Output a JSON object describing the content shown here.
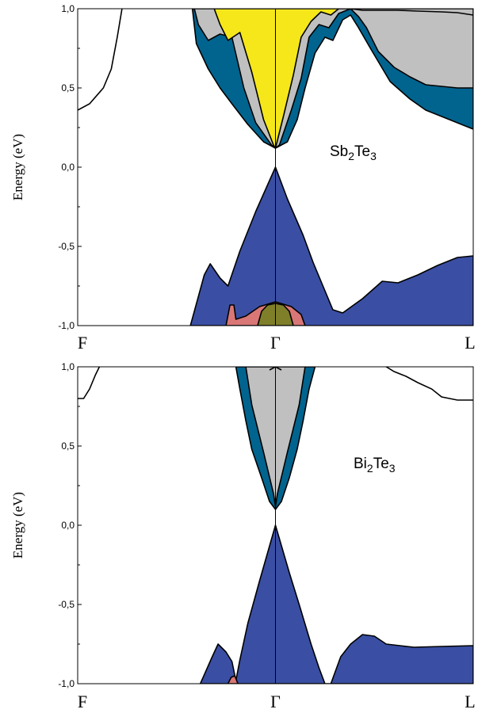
{
  "colors": {
    "outline": "#000000",
    "blue_navy": "#3a4fa3",
    "blue_teal": "#00648f",
    "gray": "#c0c0c0",
    "yellow": "#f5e71a",
    "pink": "#d97777",
    "olive": "#7f7f2a"
  },
  "chart_data": [
    {
      "type": "area",
      "material": {
        "base1": "Sb",
        "sub1": "2",
        "base2": "Te",
        "sub2": "3"
      },
      "ylabel": "Energy (eV)",
      "ylim": [
        -1.0,
        1.0
      ],
      "yticks": [
        "-1,0",
        "-0,5",
        "0,0",
        "0,5",
        "1,0"
      ],
      "xlim": [
        0,
        1
      ],
      "xticks": [
        {
          "x": 0.0,
          "label": "F"
        },
        {
          "x": 0.5,
          "label": "Γ"
        },
        {
          "x": 1.0,
          "label": "L"
        }
      ],
      "regions": [
        {
          "color": "blue_navy",
          "points": [
            [
              0.285,
              -1.0
            ],
            [
              0.32,
              -0.68
            ],
            [
              0.335,
              -0.61
            ],
            [
              0.36,
              -0.7
            ],
            [
              0.38,
              -0.75
            ],
            [
              0.41,
              -0.53
            ],
            [
              0.45,
              -0.28
            ],
            [
              0.5,
              0.0
            ],
            [
              0.53,
              -0.2
            ],
            [
              0.57,
              -0.43
            ],
            [
              0.595,
              -0.6
            ],
            [
              0.62,
              -0.75
            ],
            [
              0.645,
              -0.9
            ],
            [
              0.67,
              -0.92
            ],
            [
              0.72,
              -0.83
            ],
            [
              0.77,
              -0.72
            ],
            [
              0.81,
              -0.73
            ],
            [
              0.86,
              -0.68
            ],
            [
              0.91,
              -0.62
            ],
            [
              0.96,
              -0.57
            ],
            [
              1.0,
              -0.56
            ],
            [
              1.0,
              -1.0
            ]
          ]
        },
        {
          "color": "pink",
          "points": [
            [
              0.375,
              -1.0
            ],
            [
              0.385,
              -0.87
            ],
            [
              0.395,
              -0.87
            ],
            [
              0.4,
              -0.96
            ],
            [
              0.425,
              -0.94
            ],
            [
              0.46,
              -0.88
            ],
            [
              0.5,
              -0.85
            ],
            [
              0.54,
              -0.88
            ],
            [
              0.565,
              -0.93
            ],
            [
              0.575,
              -1.0
            ]
          ]
        },
        {
          "color": "olive",
          "points": [
            [
              0.455,
              -1.0
            ],
            [
              0.465,
              -0.91
            ],
            [
              0.48,
              -0.87
            ],
            [
              0.5,
              -0.86
            ],
            [
              0.52,
              -0.87
            ],
            [
              0.535,
              -0.91
            ],
            [
              0.545,
              -1.0
            ]
          ]
        },
        {
          "color": "blue_teal",
          "points": [
            [
              0.29,
              1.0
            ],
            [
              0.3,
              0.78
            ],
            [
              0.33,
              0.62
            ],
            [
              0.36,
              0.5
            ],
            [
              0.39,
              0.4
            ],
            [
              0.43,
              0.27
            ],
            [
              0.47,
              0.16
            ],
            [
              0.5,
              0.12
            ],
            [
              0.53,
              0.16
            ],
            [
              0.555,
              0.3
            ],
            [
              0.575,
              0.5
            ],
            [
              0.6,
              0.72
            ],
            [
              0.625,
              0.82
            ],
            [
              0.645,
              0.8
            ],
            [
              0.67,
              0.93
            ],
            [
              0.69,
              0.96
            ],
            [
              0.71,
              0.88
            ],
            [
              0.74,
              0.75
            ],
            [
              0.79,
              0.54
            ],
            [
              0.84,
              0.43
            ],
            [
              0.88,
              0.36
            ],
            [
              0.92,
              0.32
            ],
            [
              0.96,
              0.28
            ],
            [
              1.0,
              0.24
            ],
            [
              1.0,
              1.0
            ]
          ]
        },
        {
          "color": "gray",
          "points": [
            [
              0.295,
              1.0
            ],
            [
              0.305,
              0.9
            ],
            [
              0.33,
              0.8
            ],
            [
              0.36,
              0.84
            ],
            [
              0.39,
              0.82
            ],
            [
              0.42,
              0.5
            ],
            [
              0.45,
              0.28
            ],
            [
              0.49,
              0.14
            ],
            [
              0.5,
              0.12
            ],
            [
              0.51,
              0.14
            ],
            [
              0.54,
              0.36
            ],
            [
              0.565,
              0.56
            ],
            [
              0.585,
              0.82
            ],
            [
              0.61,
              0.9
            ],
            [
              0.635,
              0.88
            ],
            [
              0.66,
              0.97
            ],
            [
              0.69,
              1.0
            ],
            [
              0.71,
              0.95
            ],
            [
              0.73,
              0.88
            ],
            [
              0.76,
              0.73
            ],
            [
              0.8,
              0.63
            ],
            [
              0.84,
              0.57
            ],
            [
              0.88,
              0.52
            ],
            [
              0.92,
              0.51
            ],
            [
              0.96,
              0.5
            ],
            [
              1.0,
              0.5
            ],
            [
              1.0,
              1.0
            ]
          ]
        },
        {
          "color": "yellow",
          "points": [
            [
              0.345,
              1.0
            ],
            [
              0.36,
              0.9
            ],
            [
              0.38,
              0.8
            ],
            [
              0.41,
              0.85
            ],
            [
              0.44,
              0.6
            ],
            [
              0.47,
              0.3
            ],
            [
              0.495,
              0.14
            ],
            [
              0.5,
              0.12
            ],
            [
              0.52,
              0.32
            ],
            [
              0.545,
              0.58
            ],
            [
              0.565,
              0.82
            ],
            [
              0.59,
              0.92
            ],
            [
              0.615,
              0.98
            ],
            [
              0.64,
              0.96
            ],
            [
              0.66,
              1.0
            ]
          ]
        }
      ],
      "lines": [
        [
          [
            0.0,
            0.36
          ],
          [
            0.03,
            0.4
          ],
          [
            0.065,
            0.5
          ],
          [
            0.085,
            0.62
          ],
          [
            0.1,
            0.82
          ],
          [
            0.112,
            1.0
          ]
        ],
        [
          [
            0.69,
            1.0
          ],
          [
            0.72,
            0.99
          ],
          [
            0.76,
            0.99
          ],
          [
            0.81,
            0.99
          ],
          [
            0.86,
            0.985
          ],
          [
            0.92,
            0.98
          ],
          [
            0.96,
            0.975
          ],
          [
            1.0,
            0.96
          ]
        ]
      ],
      "gamma_line": true
    },
    {
      "type": "area",
      "material": {
        "base1": "Bi",
        "sub1": "2",
        "base2": "Te",
        "sub2": "3"
      },
      "ylabel": "Energy (eV)",
      "ylim": [
        -1.0,
        1.0
      ],
      "yticks": [
        "-1,0",
        "-0,5",
        "0,0",
        "0,5",
        "1,0"
      ],
      "xlim": [
        0,
        1
      ],
      "xticks": [
        {
          "x": 0.0,
          "label": "F"
        },
        {
          "x": 0.5,
          "label": "Γ"
        },
        {
          "x": 1.0,
          "label": "L"
        }
      ],
      "regions": [
        {
          "color": "blue_navy",
          "points": [
            [
              0.31,
              -1.0
            ],
            [
              0.34,
              -0.83
            ],
            [
              0.355,
              -0.75
            ],
            [
              0.375,
              -0.8
            ],
            [
              0.39,
              -0.86
            ],
            [
              0.4,
              -0.98
            ],
            [
              0.41,
              -0.85
            ],
            [
              0.43,
              -0.62
            ],
            [
              0.46,
              -0.35
            ],
            [
              0.5,
              0.0
            ],
            [
              0.535,
              -0.3
            ],
            [
              0.56,
              -0.5
            ],
            [
              0.59,
              -0.75
            ],
            [
              0.61,
              -0.9
            ],
            [
              0.625,
              -1.0
            ],
            [
              0.64,
              -1.0
            ],
            [
              0.665,
              -0.83
            ],
            [
              0.69,
              -0.75
            ],
            [
              0.72,
              -0.69
            ],
            [
              0.75,
              -0.7
            ],
            [
              0.78,
              -0.75
            ],
            [
              0.85,
              -0.77
            ],
            [
              0.92,
              -0.765
            ],
            [
              1.0,
              -0.76
            ],
            [
              1.0,
              -1.0
            ]
          ]
        },
        {
          "color": "pink",
          "points": [
            [
              0.38,
              -1.0
            ],
            [
              0.388,
              -0.96
            ],
            [
              0.397,
              -0.95
            ],
            [
              0.405,
              -1.0
            ]
          ]
        },
        {
          "color": "blue_teal",
          "points": [
            [
              0.4,
              1.0
            ],
            [
              0.41,
              0.86
            ],
            [
              0.425,
              0.66
            ],
            [
              0.44,
              0.48
            ],
            [
              0.465,
              0.3
            ],
            [
              0.485,
              0.15
            ],
            [
              0.5,
              0.1
            ],
            [
              0.515,
              0.15
            ],
            [
              0.535,
              0.3
            ],
            [
              0.555,
              0.48
            ],
            [
              0.57,
              0.66
            ],
            [
              0.585,
              0.86
            ],
            [
              0.6,
              1.0
            ]
          ]
        },
        {
          "color": "gray",
          "points": [
            [
              0.425,
              1.0
            ],
            [
              0.44,
              0.76
            ],
            [
              0.47,
              0.46
            ],
            [
              0.495,
              0.2
            ],
            [
              0.5,
              0.12
            ],
            [
              0.505,
              0.2
            ],
            [
              0.53,
              0.46
            ],
            [
              0.56,
              0.76
            ],
            [
              0.575,
              1.0
            ]
          ]
        }
      ],
      "lines": [
        [
          [
            0.0,
            0.8
          ],
          [
            0.015,
            0.8
          ],
          [
            0.03,
            0.86
          ],
          [
            0.045,
            0.95
          ],
          [
            0.055,
            1.0
          ]
        ],
        [
          [
            0.78,
            1.0
          ],
          [
            0.8,
            0.97
          ],
          [
            0.83,
            0.94
          ],
          [
            0.86,
            0.9
          ],
          [
            0.895,
            0.86
          ],
          [
            0.92,
            0.81
          ],
          [
            0.96,
            0.79
          ],
          [
            1.0,
            0.79
          ]
        ],
        [
          [
            0.485,
            0.98
          ],
          [
            0.5,
            1.0
          ],
          [
            0.515,
            0.98
          ]
        ]
      ],
      "gamma_line": true
    }
  ]
}
